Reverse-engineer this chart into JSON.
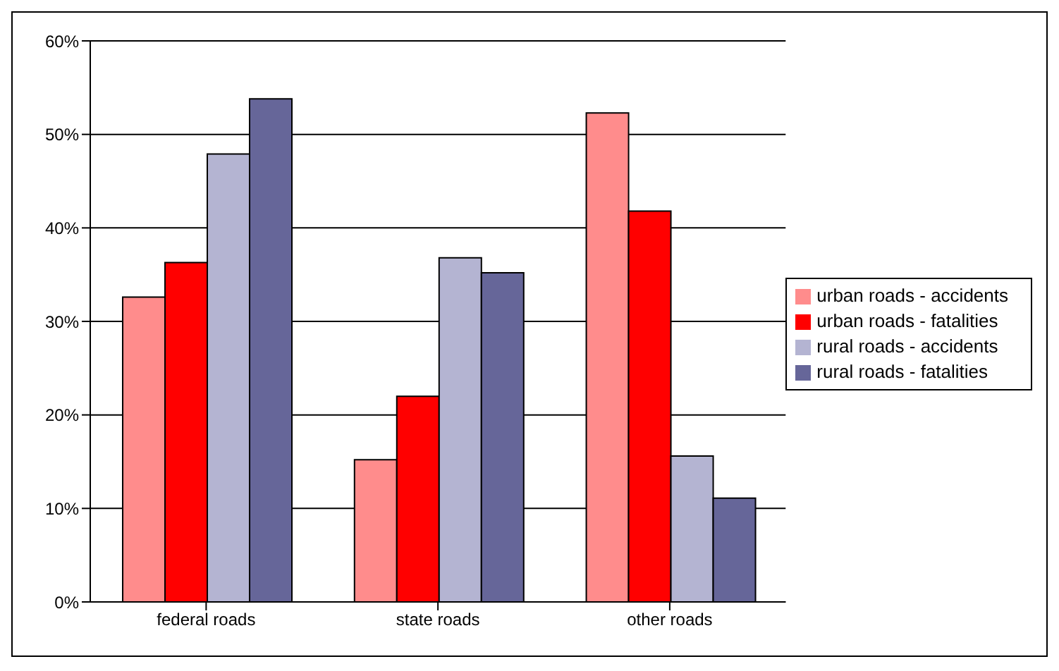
{
  "chart_data": {
    "type": "bar",
    "categories": [
      "federal roads",
      "state roads",
      "other roads"
    ],
    "series": [
      {
        "name": "urban roads - accidents",
        "color": "#ff8c8c",
        "values": [
          32.6,
          15.2,
          52.3
        ]
      },
      {
        "name": "urban roads - fatalities",
        "color": "#ff0000",
        "values": [
          36.3,
          22.0,
          41.8
        ]
      },
      {
        "name": "rural roads - accidents",
        "color": "#b4b4d2",
        "values": [
          47.9,
          36.8,
          15.6
        ]
      },
      {
        "name": "rural roads - fatalities",
        "color": "#666699",
        "values": [
          53.8,
          35.2,
          11.1
        ]
      }
    ],
    "ylim": [
      0,
      60
    ],
    "yticks": [
      {
        "value": 0,
        "label": "0%"
      },
      {
        "value": 10,
        "label": "10%"
      },
      {
        "value": 20,
        "label": "20%"
      },
      {
        "value": 30,
        "label": "30%"
      },
      {
        "value": 40,
        "label": "40%"
      },
      {
        "value": 50,
        "label": "50%"
      },
      {
        "value": 60,
        "label": "60%"
      }
    ],
    "grid": "y",
    "legend": "right"
  }
}
